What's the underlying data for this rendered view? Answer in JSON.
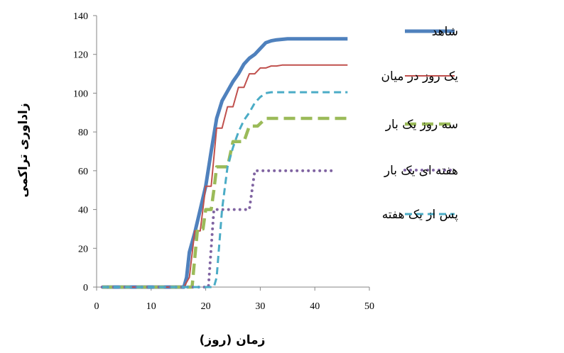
{
  "chart_data": {
    "type": "line",
    "xlabel": "زمان (روز)",
    "ylabel": "زاداوری تراکمی",
    "xlim": [
      0,
      50
    ],
    "ylim": [
      0,
      140
    ],
    "xticks": [
      0,
      10,
      20,
      30,
      40,
      50
    ],
    "yticks": [
      0,
      20,
      40,
      60,
      80,
      100,
      120,
      140
    ],
    "grid": false,
    "legend": {
      "position": "right"
    },
    "series": [
      {
        "name": "شاهد",
        "color": "#4f81bd",
        "dash": "solid",
        "points": [
          [
            1,
            0
          ],
          [
            16,
            0
          ],
          [
            16.5,
            5
          ],
          [
            17,
            18
          ],
          [
            18,
            28
          ],
          [
            19,
            40
          ],
          [
            20,
            52
          ],
          [
            21,
            70
          ],
          [
            22,
            87
          ],
          [
            23,
            96
          ],
          [
            24,
            101
          ],
          [
            25,
            106
          ],
          [
            26,
            110
          ],
          [
            27,
            115
          ],
          [
            28,
            118
          ],
          [
            29,
            120
          ],
          [
            30,
            123
          ],
          [
            31,
            126
          ],
          [
            32,
            127
          ],
          [
            33,
            127.5
          ],
          [
            35,
            128
          ],
          [
            46,
            128
          ]
        ]
      },
      {
        "name": "یک روز در میان",
        "color": "#c0504d",
        "dash": "solid",
        "points": [
          [
            1,
            0
          ],
          [
            16,
            0
          ],
          [
            17,
            5
          ],
          [
            18,
            29
          ],
          [
            19,
            29
          ],
          [
            20,
            52
          ],
          [
            21,
            52
          ],
          [
            22,
            82
          ],
          [
            23,
            82
          ],
          [
            24,
            93
          ],
          [
            25,
            93
          ],
          [
            26,
            103
          ],
          [
            27,
            103
          ],
          [
            28,
            110
          ],
          [
            29,
            110
          ],
          [
            30,
            113
          ],
          [
            31,
            113
          ],
          [
            32,
            114
          ],
          [
            33,
            114
          ],
          [
            34,
            114.5
          ],
          [
            46,
            114.5
          ]
        ]
      },
      {
        "name": "سه روز یک بار",
        "color": "#9bbb59",
        "dash": "longdash",
        "points": [
          [
            1,
            0
          ],
          [
            17.5,
            0
          ],
          [
            18,
            15
          ],
          [
            18.5,
            30
          ],
          [
            19.5,
            30
          ],
          [
            20,
            40
          ],
          [
            21,
            40
          ],
          [
            21.5,
            50
          ],
          [
            22,
            62
          ],
          [
            24,
            62
          ],
          [
            25,
            75
          ],
          [
            27,
            75
          ],
          [
            28,
            83
          ],
          [
            29.5,
            83
          ],
          [
            31,
            87
          ],
          [
            46,
            87
          ]
        ]
      },
      {
        "name": "هفته ای یک بار",
        "color": "#8064a2",
        "dash": "dotted",
        "points": [
          [
            1,
            0
          ],
          [
            20.5,
            0
          ],
          [
            21.5,
            40
          ],
          [
            28,
            40
          ],
          [
            29,
            60
          ],
          [
            43,
            60
          ]
        ]
      },
      {
        "name": "پس از یک هفته",
        "color": "#4bacc6",
        "dash": "dashed",
        "points": [
          [
            1,
            0
          ],
          [
            21.5,
            0
          ],
          [
            22,
            5
          ],
          [
            23,
            40
          ],
          [
            24,
            62
          ],
          [
            25,
            72
          ],
          [
            26,
            80
          ],
          [
            27,
            86
          ],
          [
            28,
            90
          ],
          [
            29,
            95
          ],
          [
            30,
            98
          ],
          [
            31,
            100
          ],
          [
            32,
            100.5
          ],
          [
            46,
            100.5
          ]
        ]
      }
    ]
  }
}
